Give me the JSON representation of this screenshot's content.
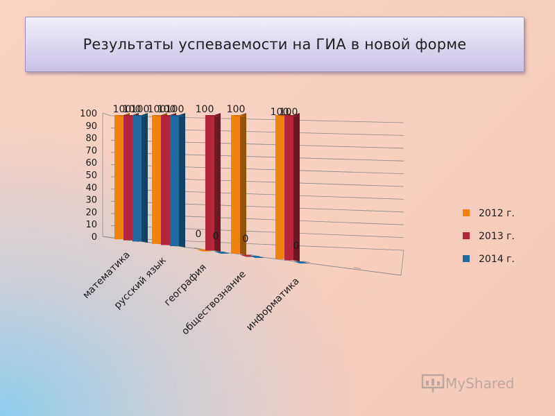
{
  "title": "Результаты успеваемости  на  ГИА в новой форме",
  "watermark": "MyShared",
  "colors": {
    "2012 г.": "#f0830f",
    "2013 г.": "#b3263c",
    "2014 г.": "#1f6a9e"
  },
  "chart_data": {
    "type": "bar",
    "categories": [
      "математика",
      "русский язык",
      "география",
      "обществознание",
      "информатика"
    ],
    "series": [
      {
        "name": "2012 г.",
        "values": [
          100,
          100,
          0,
          100,
          100
        ]
      },
      {
        "name": "2013 г.",
        "values": [
          100,
          100,
          100,
          0,
          100
        ]
      },
      {
        "name": "2014 г.",
        "values": [
          100,
          100,
          0,
          0,
          0
        ]
      }
    ],
    "data_labels": [
      [
        "100",
        "100",
        "0",
        "100",
        "100"
      ],
      [
        "100",
        "100",
        "100",
        "0",
        "100"
      ],
      [
        "100",
        "100",
        "0",
        "",
        "0"
      ]
    ],
    "yticks": [
      0,
      10,
      20,
      30,
      40,
      50,
      60,
      70,
      80,
      90,
      100
    ],
    "ylim": [
      0,
      100
    ],
    "grid": true,
    "legend_position": "right",
    "title": "Результаты успеваемости  на  ГИА в новой форме"
  }
}
